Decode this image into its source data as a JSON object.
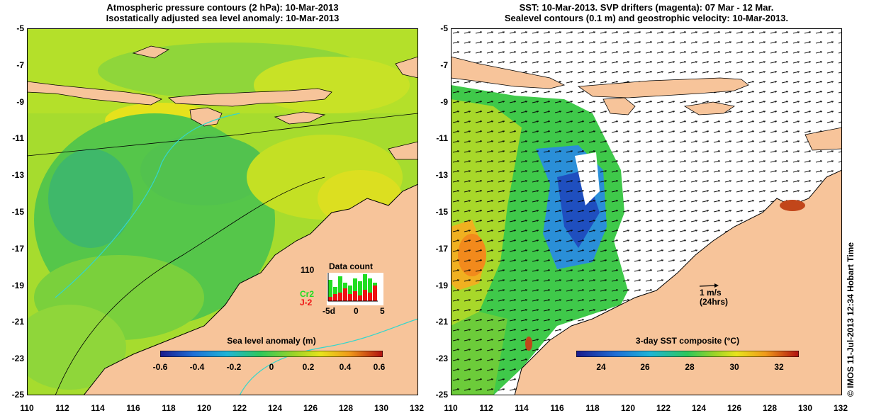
{
  "left_panel": {
    "title_line1": "Atmospheric pressure contours (2 hPa): 10-Mar-2013",
    "title_line2": "Isostatically adjusted sea level anomaly: 10-Mar-2013",
    "colorbar_title": "Sea level anomaly (m)",
    "colorbar_ticks": [
      "-0.6",
      "-0.4",
      "-0.2",
      "0",
      "0.2",
      "0.4",
      "0.6"
    ],
    "inset": {
      "title": "Data count",
      "max_label": "110",
      "series": [
        {
          "name": "Cr2",
          "color": "#22dd22"
        },
        {
          "name": "J-2",
          "color": "#ee1111"
        }
      ],
      "x_ticks": [
        "-5d",
        "0",
        "5"
      ]
    }
  },
  "right_panel": {
    "title_line1": "SST: 10-Mar-2013. SVP drifters (magenta): 07 Mar - 12 Mar.",
    "title_line2": "Sealevel contours (0.1 m) and geostrophic velocity: 10-Mar-2013.",
    "colorbar_title": "3-day SST composite (°C)",
    "colorbar_ticks": [
      "24",
      "26",
      "28",
      "30",
      "32"
    ],
    "velocity_scale_line1": "1 m/s",
    "velocity_scale_line2": "(24hrs)"
  },
  "axes": {
    "y_ticks": [
      "-5",
      "-7",
      "-9",
      "-11",
      "-13",
      "-15",
      "-17",
      "-19",
      "-21",
      "-23",
      "-25"
    ],
    "x_ticks": [
      "110",
      "112",
      "114",
      "116",
      "118",
      "120",
      "122",
      "124",
      "126",
      "128",
      "130",
      "132"
    ]
  },
  "credit": "© IMOS 11-Jul-2013 12:34 Hobart Time"
}
